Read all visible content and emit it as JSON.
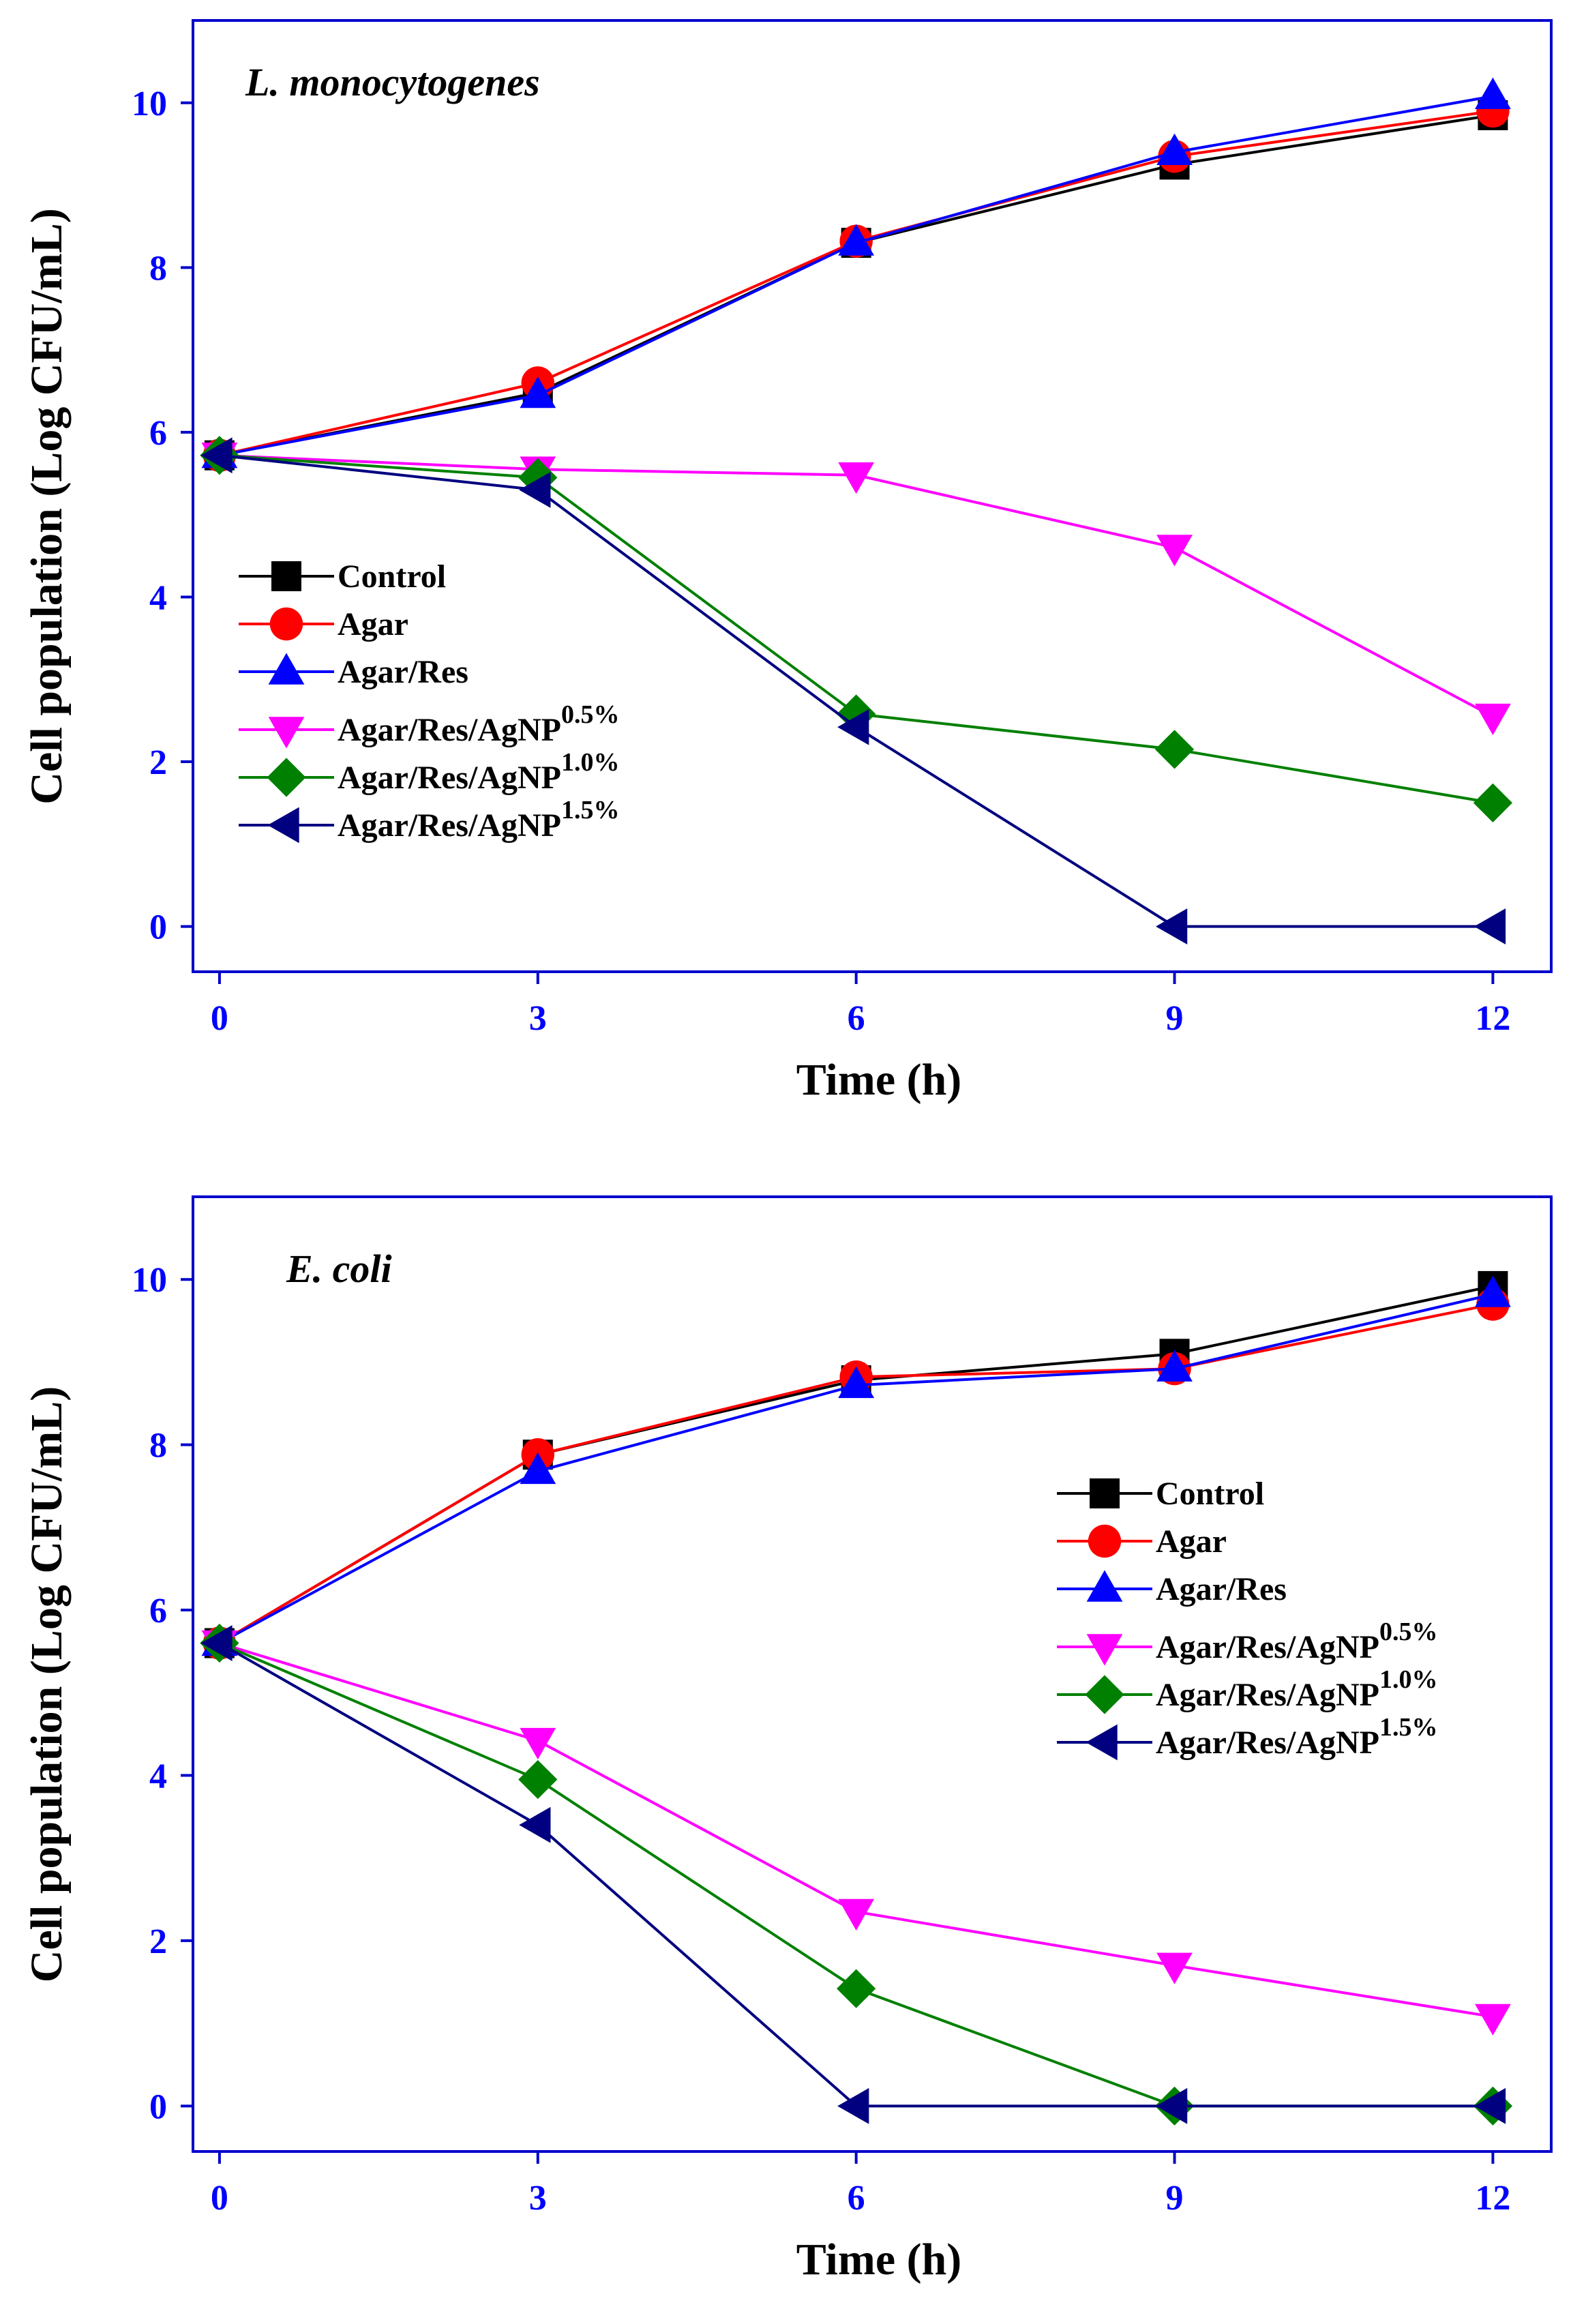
{
  "chart_data": [
    {
      "type": "line",
      "title": "L. monocytogenes",
      "xlabel": "Time (h)",
      "ylabel": "Cell population (Log CFU/mL)",
      "x": [
        0,
        3,
        6,
        9,
        12
      ],
      "xlim": [
        -0.25,
        12.55
      ],
      "ylim": [
        -0.55,
        11.0
      ],
      "xticks": [
        0,
        3,
        6,
        9,
        12
      ],
      "yticks": [
        0,
        2,
        4,
        6,
        8,
        10
      ],
      "legend_position": "center-left",
      "series": [
        {
          "name": "Control",
          "sup": "",
          "marker": "square",
          "color": "#000000",
          "values": [
            5.72,
            6.48,
            8.3,
            9.25,
            9.85
          ]
        },
        {
          "name": "Agar",
          "sup": "",
          "marker": "circle",
          "color": "#ff0000",
          "values": [
            5.72,
            6.6,
            8.32,
            9.35,
            9.9
          ]
        },
        {
          "name": "Agar/Res",
          "sup": "",
          "marker": "triangle-up",
          "color": "#0000ff",
          "values": [
            5.72,
            6.45,
            8.3,
            9.4,
            10.08
          ]
        },
        {
          "name": "Agar/Res/AgNP",
          "sup": "0.5%",
          "marker": "triangle-down",
          "color": "#ff00ff",
          "values": [
            5.72,
            5.55,
            5.48,
            4.6,
            2.55
          ]
        },
        {
          "name": "Agar/Res/AgNP",
          "sup": "1.0%",
          "marker": "diamond",
          "color": "#008000",
          "values": [
            5.72,
            5.45,
            2.58,
            2.15,
            1.5
          ]
        },
        {
          "name": "Agar/Res/AgNP",
          "sup": "1.5%",
          "marker": "triangle-left",
          "color": "#000080",
          "values": [
            5.72,
            5.3,
            2.42,
            0.0,
            0.0
          ]
        }
      ]
    },
    {
      "type": "line",
      "title": "E. coli",
      "xlabel": "Time (h)",
      "ylabel": "Cell population (Log CFU/mL)",
      "x": [
        0,
        3,
        6,
        9,
        12
      ],
      "xlim": [
        -0.25,
        12.55
      ],
      "ylim": [
        -0.55,
        11.0
      ],
      "xticks": [
        0,
        3,
        6,
        9,
        12
      ],
      "yticks": [
        0,
        2,
        4,
        6,
        8,
        10
      ],
      "legend_position": "center-right",
      "series": [
        {
          "name": "Control",
          "sup": "",
          "marker": "square",
          "color": "#000000",
          "values": [
            5.6,
            7.88,
            8.78,
            9.1,
            9.92
          ]
        },
        {
          "name": "Agar",
          "sup": "",
          "marker": "circle",
          "color": "#ff0000",
          "values": [
            5.6,
            7.88,
            8.82,
            8.92,
            9.7
          ]
        },
        {
          "name": "Agar/Res",
          "sup": "",
          "marker": "triangle-up",
          "color": "#0000ff",
          "values": [
            5.6,
            7.68,
            8.72,
            8.92,
            9.82
          ]
        },
        {
          "name": "Agar/Res/AgNP",
          "sup": "0.5%",
          "marker": "triangle-down",
          "color": "#ff00ff",
          "values": [
            5.6,
            4.42,
            2.35,
            1.7,
            1.08
          ]
        },
        {
          "name": "Agar/Res/AgNP",
          "sup": "1.0%",
          "marker": "diamond",
          "color": "#008000",
          "values": [
            5.6,
            3.95,
            1.42,
            0.0,
            0.0
          ]
        },
        {
          "name": "Agar/Res/AgNP",
          "sup": "1.5%",
          "marker": "triangle-left",
          "color": "#000080",
          "values": [
            5.6,
            3.4,
            0.0,
            0.0,
            0.0
          ]
        }
      ]
    }
  ],
  "colors": {
    "axis": "#0000cc",
    "tick_label": "#0000ff"
  }
}
